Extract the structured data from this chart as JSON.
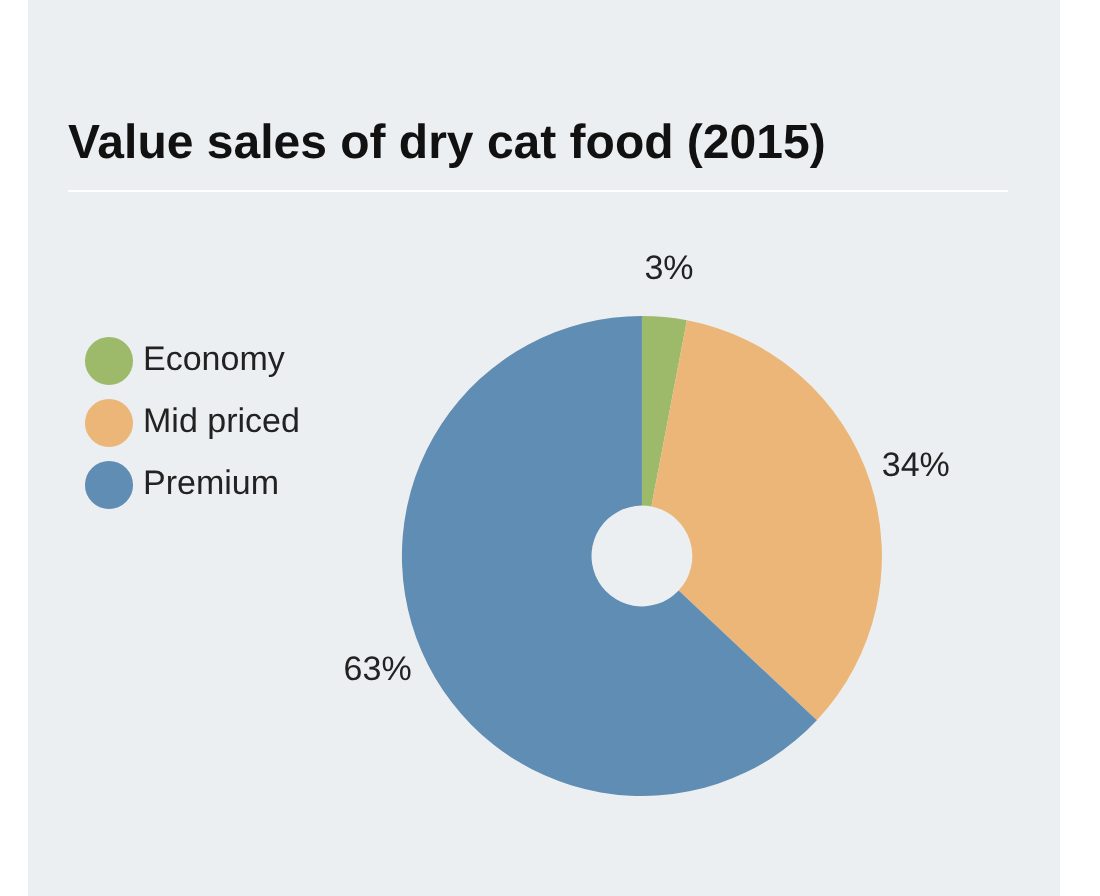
{
  "chart_data": {
    "type": "donut",
    "title": "Value sales of dry cat food (2015)",
    "categories": [
      "Economy",
      "Mid priced",
      "Premium"
    ],
    "values": [
      3,
      34,
      63
    ],
    "colors": [
      "#9dba6b",
      "#ebb678",
      "#608db3"
    ],
    "value_labels": [
      "3%",
      "34%",
      "63%"
    ],
    "legend": "top left"
  }
}
